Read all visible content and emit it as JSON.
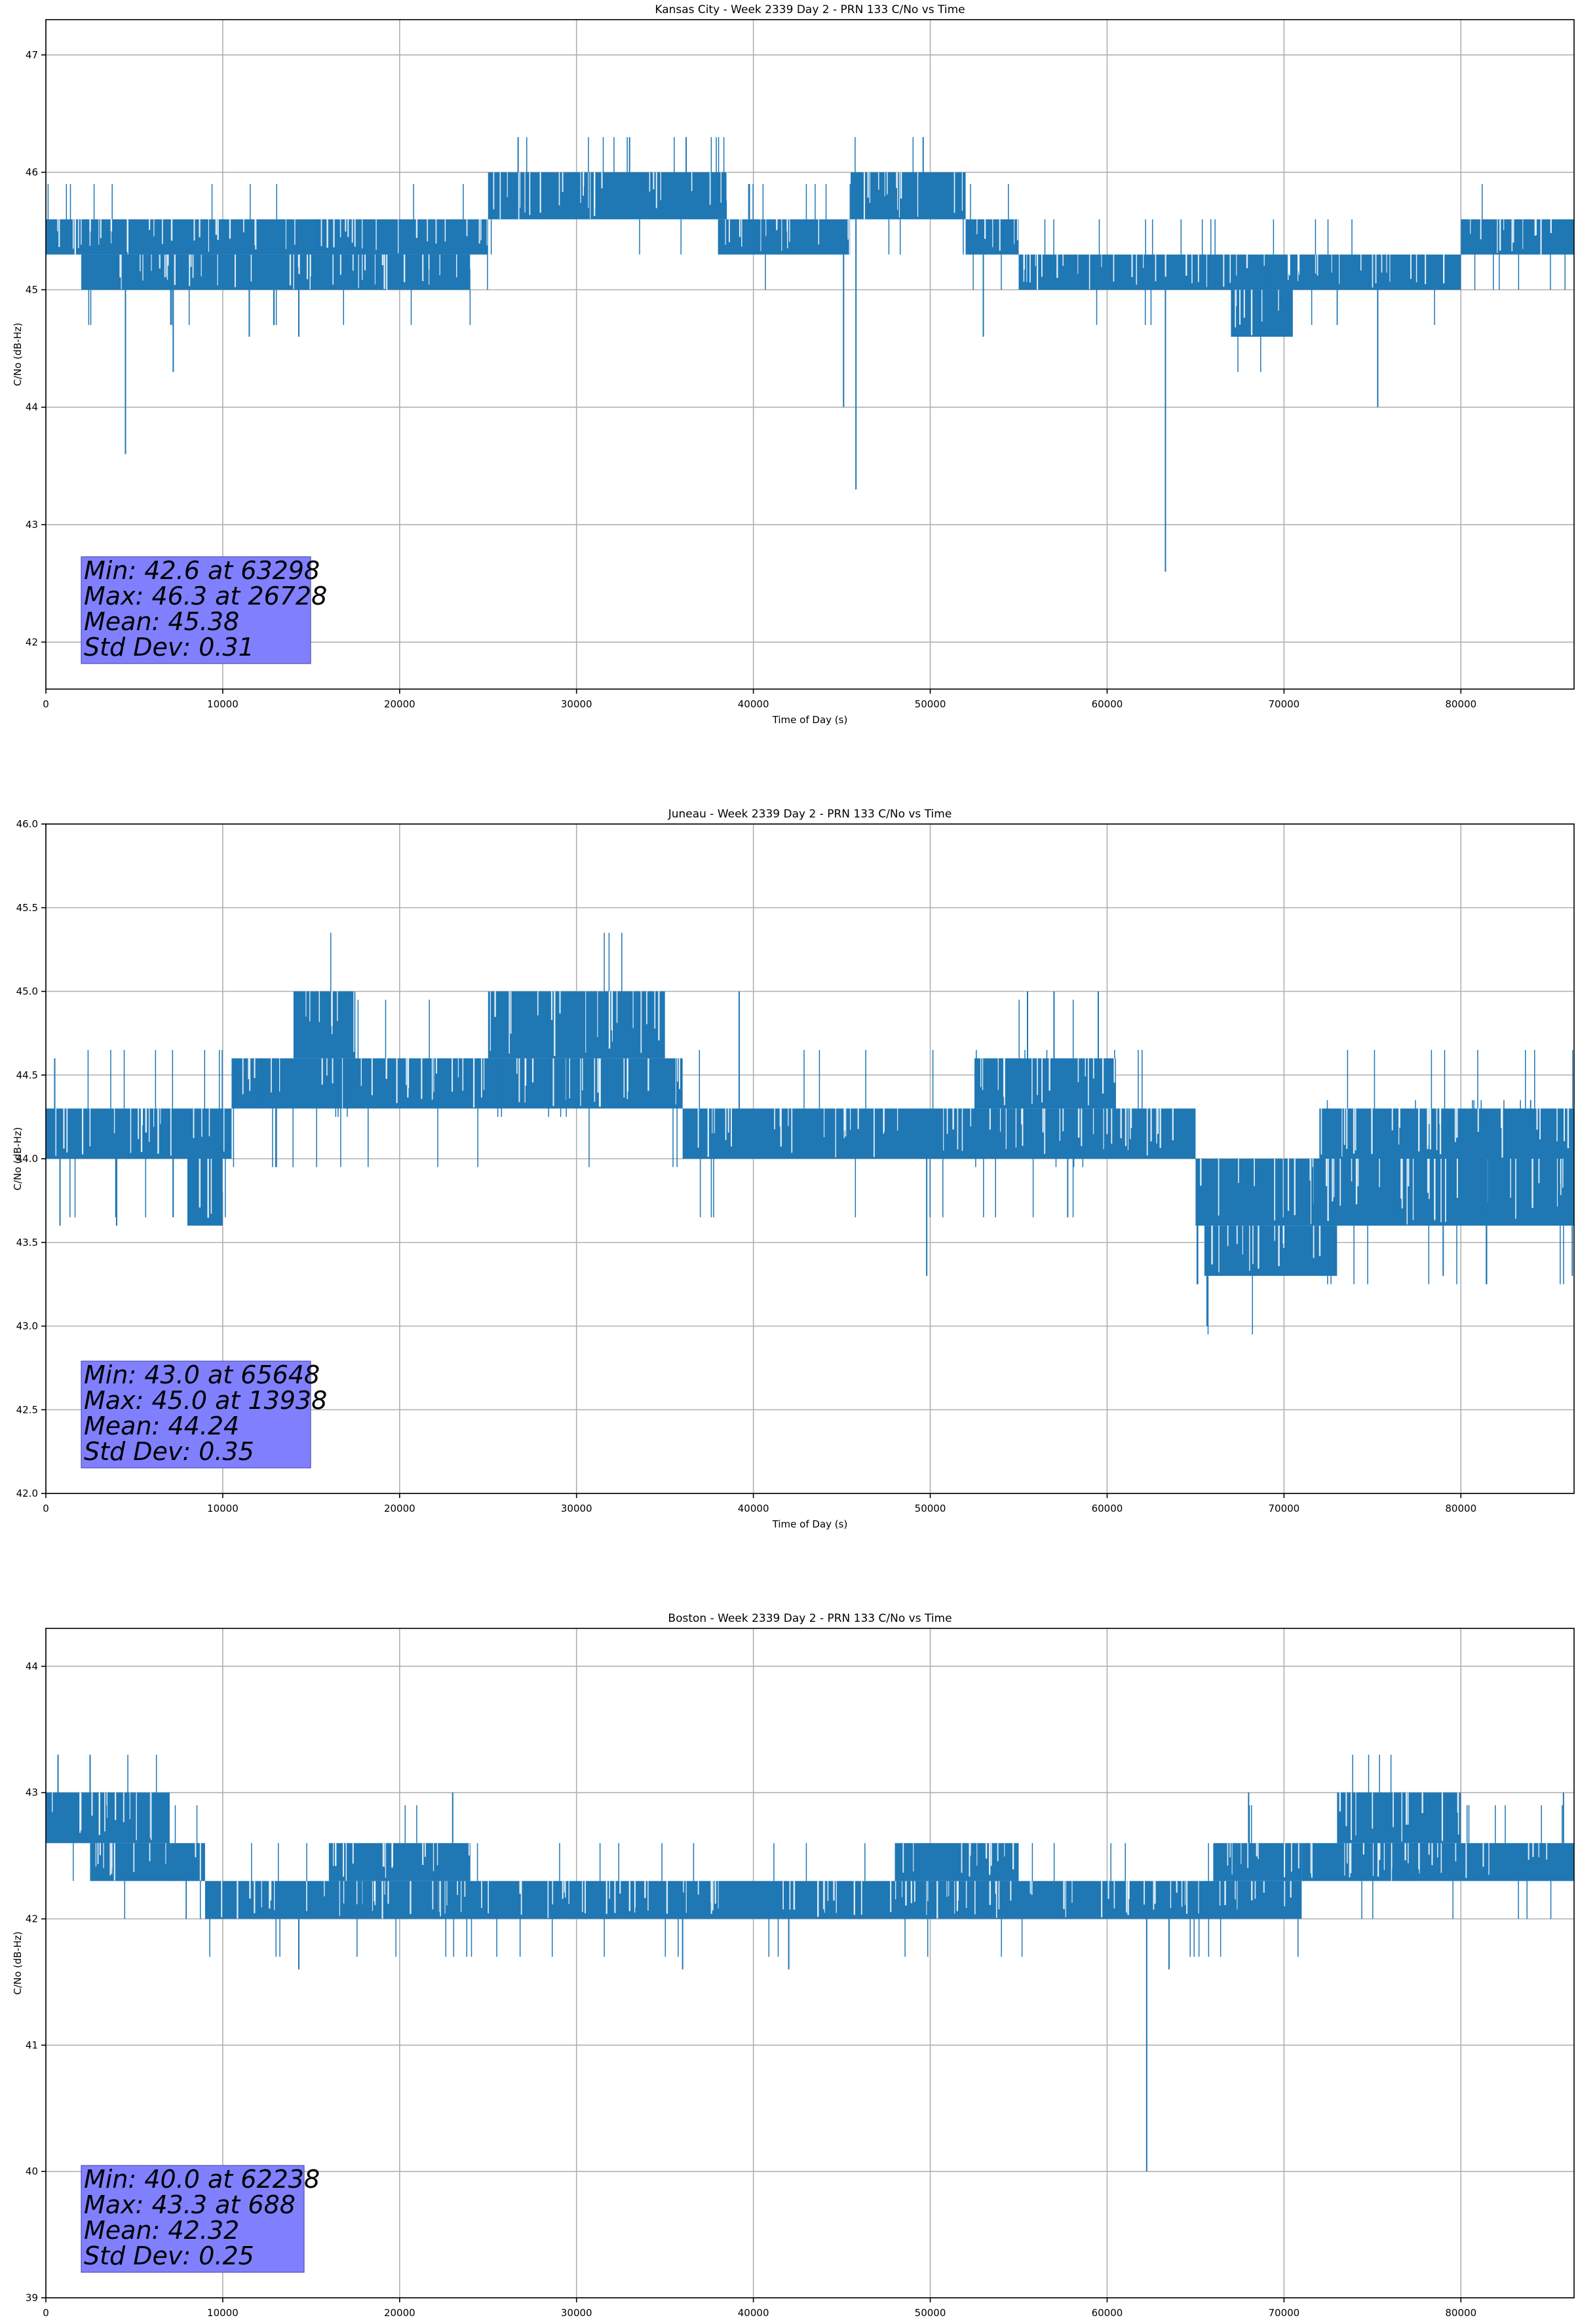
{
  "chart_data": [
    {
      "type": "line",
      "title": "Kansas City - Week 2339 Day 2 - PRN 133 C/No vs Time",
      "xlabel": "Time of Day (s)",
      "ylabel": "C/No (dB-Hz)",
      "xlim": [
        0,
        86400
      ],
      "ylim": [
        41.6,
        47.3
      ],
      "xticks": [
        0,
        10000,
        20000,
        30000,
        40000,
        50000,
        60000,
        70000,
        80000
      ],
      "yticks": [
        42,
        43,
        44,
        45,
        46,
        47
      ],
      "grid": true,
      "series": [
        {
          "name": "C/No",
          "color": "#1f77b4",
          "bands": [
            {
              "x": [
                0,
                25000
              ],
              "low": 45.3,
              "high": 45.6
            },
            {
              "x": [
                2000,
                24000
              ],
              "low": 45.0,
              "high": 45.3
            },
            {
              "x": [
                25000,
                38500
              ],
              "low": 45.6,
              "high": 46.0
            },
            {
              "x": [
                38000,
                45500
              ],
              "low": 45.3,
              "high": 45.6
            },
            {
              "x": [
                45500,
                52000
              ],
              "low": 45.6,
              "high": 46.0
            },
            {
              "x": [
                52000,
                55000
              ],
              "low": 45.3,
              "high": 45.6
            },
            {
              "x": [
                55000,
                80000
              ],
              "low": 45.0,
              "high": 45.3
            },
            {
              "x": [
                67000,
                70500
              ],
              "low": 44.6,
              "high": 45.0
            },
            {
              "x": [
                80000,
                86400
              ],
              "low": 45.3,
              "high": 45.6
            }
          ],
          "spikes": [
            [
              4500,
              43.6
            ],
            [
              7200,
              44.3
            ],
            [
              11500,
              44.6
            ],
            [
              14300,
              44.6
            ],
            [
              22500,
              45.0
            ],
            [
              26700,
              46.3
            ],
            [
              33000,
              46.3
            ],
            [
              36200,
              46.3
            ],
            [
              45100,
              44.0
            ],
            [
              45800,
              43.3
            ],
            [
              49600,
              46.3
            ],
            [
              53000,
              44.6
            ],
            [
              63298,
              42.6
            ],
            [
              75300,
              44.0
            ]
          ]
        }
      ],
      "annotation": {
        "lines": [
          "Min: 42.6 at 63298",
          "Max: 46.3 at 26728",
          "Mean: 45.38",
          "Std Dev: 0.31"
        ]
      }
    },
    {
      "type": "line",
      "title": "Juneau - Week 2339 Day 2 - PRN 133 C/No vs Time",
      "xlabel": "Time of Day (s)",
      "ylabel": "C/No (dB-Hz)",
      "xlim": [
        0,
        86400
      ],
      "ylim": [
        42.0,
        46.0
      ],
      "xticks": [
        0,
        10000,
        20000,
        30000,
        40000,
        50000,
        60000,
        70000,
        80000
      ],
      "yticks": [
        42.0,
        42.5,
        43.0,
        43.5,
        44.0,
        44.5,
        45.0,
        45.5,
        46.0
      ],
      "grid": true,
      "series": [
        {
          "name": "C/No",
          "color": "#1f77b4",
          "bands": [
            {
              "x": [
                0,
                10500
              ],
              "low": 44.0,
              "high": 44.3
            },
            {
              "x": [
                8000,
                10000
              ],
              "low": 43.6,
              "high": 44.0
            },
            {
              "x": [
                10500,
                36000
              ],
              "low": 44.3,
              "high": 44.6
            },
            {
              "x": [
                14000,
                17500
              ],
              "low": 44.6,
              "high": 45.0
            },
            {
              "x": [
                25000,
                35000
              ],
              "low": 44.6,
              "high": 45.0
            },
            {
              "x": [
                36000,
                65000
              ],
              "low": 44.0,
              "high": 44.3
            },
            {
              "x": [
                52500,
                60500
              ],
              "low": 44.3,
              "high": 44.6
            },
            {
              "x": [
                65000,
                86400
              ],
              "low": 43.6,
              "high": 44.0
            },
            {
              "x": [
                65500,
                73000
              ],
              "low": 43.3,
              "high": 43.6
            },
            {
              "x": [
                72000,
                86400
              ],
              "low": 44.0,
              "high": 44.3
            }
          ],
          "spikes": [
            [
              500,
              44.6
            ],
            [
              800,
              43.6
            ],
            [
              4000,
              43.6
            ],
            [
              12200,
              44.6
            ],
            [
              39200,
              45.0
            ],
            [
              49800,
              43.3
            ],
            [
              55500,
              45.0
            ],
            [
              57000,
              45.0
            ],
            [
              59500,
              45.0
            ],
            [
              65648,
              43.0
            ],
            [
              79000,
              43.3
            ],
            [
              86300,
              43.3
            ]
          ]
        }
      ],
      "annotation": {
        "lines": [
          "Min: 43.0 at 65648",
          "Max: 45.0 at 13938",
          "Mean: 44.24",
          "Std Dev: 0.35"
        ]
      }
    },
    {
      "type": "line",
      "title": "Boston - Week 2339 Day 2 - PRN 133 C/No vs Time",
      "xlabel": "Time of Day (s)",
      "ylabel": "C/No (dB-Hz)",
      "xlim": [
        0,
        86400
      ],
      "ylim": [
        39.0,
        44.3
      ],
      "xticks": [
        0,
        10000,
        20000,
        30000,
        40000,
        50000,
        60000,
        70000,
        80000
      ],
      "yticks": [
        39,
        40,
        41,
        42,
        43,
        44
      ],
      "grid": true,
      "series": [
        {
          "name": "C/No",
          "color": "#1f77b4",
          "bands": [
            {
              "x": [
                0,
                7000
              ],
              "low": 42.6,
              "high": 43.0
            },
            {
              "x": [
                2500,
                9000
              ],
              "low": 42.3,
              "high": 42.6
            },
            {
              "x": [
                9000,
                71000
              ],
              "low": 42.0,
              "high": 42.3
            },
            {
              "x": [
                16000,
                24000
              ],
              "low": 42.3,
              "high": 42.6
            },
            {
              "x": [
                48000,
                55000
              ],
              "low": 42.3,
              "high": 42.6
            },
            {
              "x": [
                66000,
                71000
              ],
              "low": 42.3,
              "high": 42.6
            },
            {
              "x": [
                71000,
                86400
              ],
              "low": 42.3,
              "high": 42.6
            },
            {
              "x": [
                73000,
                80000
              ],
              "low": 42.6,
              "high": 43.0
            }
          ],
          "spikes": [
            [
              688,
              43.3
            ],
            [
              2500,
              43.3
            ],
            [
              14300,
              41.6
            ],
            [
              23000,
              43.0
            ],
            [
              36000,
              41.6
            ],
            [
              42000,
              41.6
            ],
            [
              62238,
              40.0
            ],
            [
              63500,
              41.6
            ],
            [
              68000,
              43.0
            ],
            [
              85800,
              43.0
            ]
          ]
        }
      ],
      "annotation": {
        "lines": [
          "Min: 40.0 at 62238",
          "Max: 43.3 at 688",
          "Mean: 42.32",
          "Std Dev: 0.25"
        ]
      }
    }
  ]
}
